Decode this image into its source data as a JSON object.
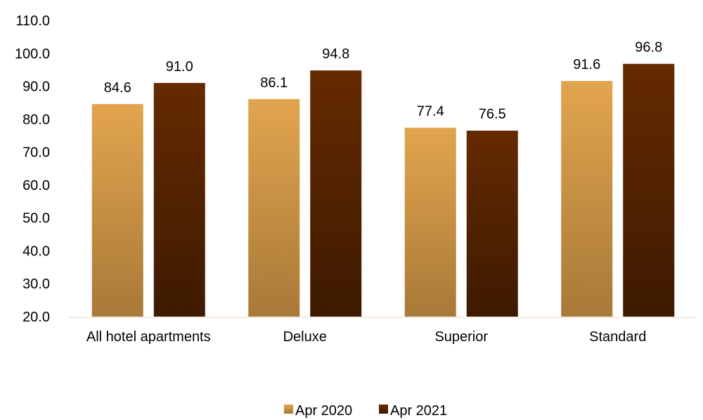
{
  "chart_data": {
    "type": "bar",
    "title": "",
    "xlabel": "",
    "ylabel": "",
    "categories": [
      "All hotel apartments",
      "Deluxe",
      "Superior",
      "Standard"
    ],
    "series": [
      {
        "name": "Apr 2020",
        "values": [
          84.6,
          86.1,
          77.4,
          91.6
        ],
        "color_top": "#E2A54E",
        "color_bottom": "#A87938"
      },
      {
        "name": "Apr 2021",
        "values": [
          91.0,
          94.8,
          76.5,
          96.8
        ],
        "color_top": "#652A00",
        "color_bottom": "#3E1A00"
      }
    ],
    "ylim": [
      20,
      110
    ],
    "yticks": [
      "20.0",
      "30.0",
      "40.0",
      "50.0",
      "60.0",
      "70.0",
      "80.0",
      "90.0",
      "100.0",
      "110.0"
    ],
    "data_labels": [
      [
        "84.6",
        "86.1",
        "77.4",
        "91.6"
      ],
      [
        "91.0",
        "94.8",
        "76.5",
        "96.8"
      ]
    ],
    "grid": false,
    "legend_position": "bottom"
  }
}
